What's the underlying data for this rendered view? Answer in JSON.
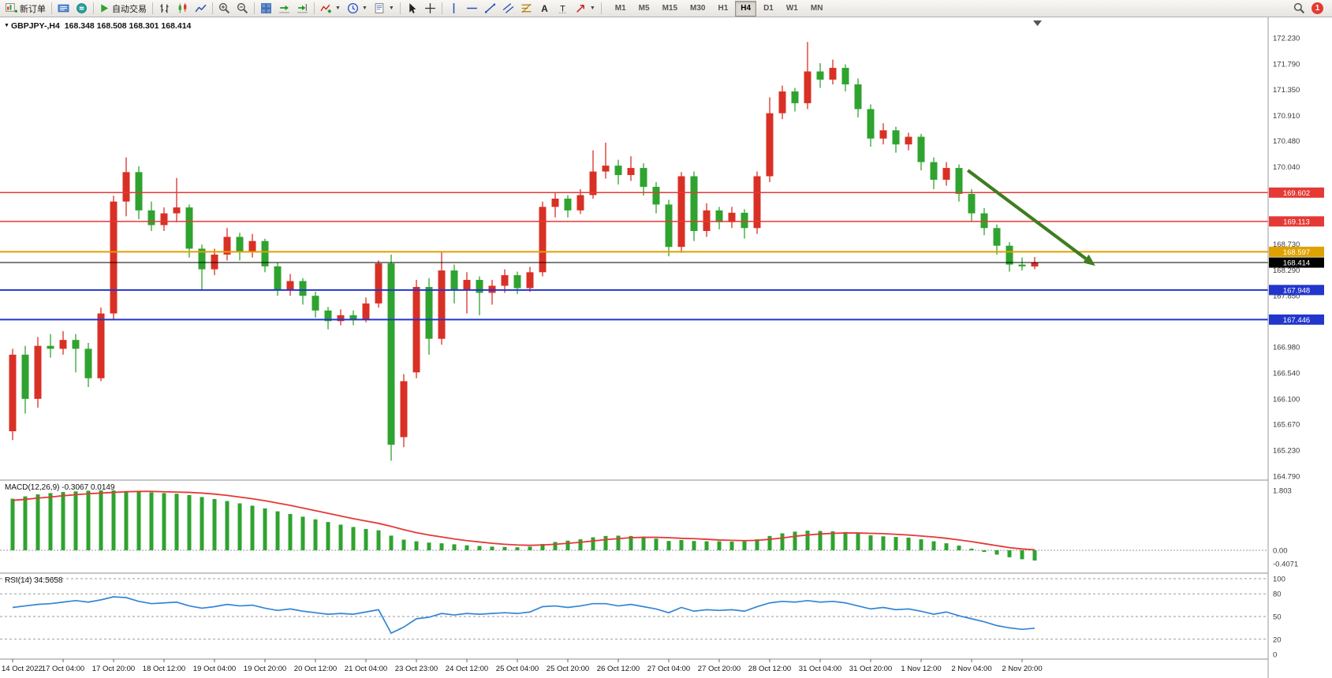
{
  "toolbar": {
    "new_order_label": "新订单",
    "autotrade_label": "自动交易",
    "timeframes": [
      "M1",
      "M5",
      "M15",
      "M30",
      "H1",
      "H4",
      "D1",
      "W1",
      "MN"
    ],
    "active_timeframe": "H4",
    "notification_count": "1"
  },
  "chart_data": {
    "type": "candlestick",
    "symbol_label": "GBPJPY-,H4",
    "ohlc_label": "168.348 168.508 168.301 168.414",
    "colors": {
      "up": "#d93025",
      "down": "#2fa32f",
      "macd_hist": "#2fa32f",
      "macd_signal": "#e53935",
      "rsi_line": "#3584d6"
    },
    "candles": [
      [
        165.55,
        166.95,
        165.4,
        166.85
      ],
      [
        166.85,
        167.0,
        165.85,
        166.1
      ],
      [
        166.1,
        167.15,
        165.95,
        167.0
      ],
      [
        167.0,
        167.2,
        166.8,
        166.95
      ],
      [
        166.95,
        167.25,
        166.85,
        167.1
      ],
      [
        167.1,
        167.2,
        166.55,
        166.95
      ],
      [
        166.95,
        167.05,
        166.3,
        166.45
      ],
      [
        166.45,
        167.65,
        166.4,
        167.55
      ],
      [
        167.55,
        169.55,
        167.45,
        169.45
      ],
      [
        169.45,
        170.2,
        169.2,
        169.95
      ],
      [
        169.95,
        170.05,
        169.15,
        169.3
      ],
      [
        169.3,
        169.45,
        168.95,
        169.05
      ],
      [
        169.05,
        169.35,
        168.95,
        169.25
      ],
      [
        169.25,
        169.85,
        169.1,
        169.35
      ],
      [
        169.35,
        169.4,
        168.5,
        168.65
      ],
      [
        168.65,
        168.72,
        167.95,
        168.3
      ],
      [
        168.3,
        168.65,
        168.2,
        168.55
      ],
      [
        168.55,
        169.0,
        168.45,
        168.85
      ],
      [
        168.85,
        168.92,
        168.45,
        168.6
      ],
      [
        168.6,
        168.9,
        168.5,
        168.78
      ],
      [
        168.78,
        168.82,
        168.25,
        168.35
      ],
      [
        168.35,
        168.42,
        167.85,
        167.95
      ],
      [
        167.95,
        168.22,
        167.85,
        168.1
      ],
      [
        168.1,
        168.15,
        167.7,
        167.85
      ],
      [
        167.85,
        167.92,
        167.48,
        167.6
      ],
      [
        167.6,
        167.66,
        167.28,
        167.42
      ],
      [
        167.42,
        167.62,
        167.35,
        167.52
      ],
      [
        167.52,
        167.6,
        167.35,
        167.45
      ],
      [
        167.45,
        167.82,
        167.4,
        167.72
      ],
      [
        167.72,
        168.45,
        167.65,
        168.4
      ],
      [
        168.4,
        168.55,
        165.05,
        165.32
      ],
      [
        165.45,
        166.52,
        165.28,
        166.4
      ],
      [
        166.55,
        168.12,
        166.45,
        168.0
      ],
      [
        168.0,
        168.15,
        166.85,
        167.12
      ],
      [
        167.12,
        168.6,
        167.02,
        168.28
      ],
      [
        168.28,
        168.38,
        167.72,
        167.95
      ],
      [
        167.95,
        168.25,
        167.55,
        168.12
      ],
      [
        168.12,
        168.18,
        167.52,
        167.9
      ],
      [
        167.9,
        168.12,
        167.7,
        168.02
      ],
      [
        168.02,
        168.3,
        167.9,
        168.2
      ],
      [
        168.2,
        168.26,
        167.88,
        167.98
      ],
      [
        167.98,
        168.34,
        167.92,
        168.25
      ],
      [
        168.25,
        169.45,
        168.18,
        169.36
      ],
      [
        169.36,
        169.6,
        169.18,
        169.5
      ],
      [
        169.5,
        169.56,
        169.18,
        169.3
      ],
      [
        169.3,
        169.66,
        169.24,
        169.56
      ],
      [
        169.56,
        170.32,
        169.5,
        169.96
      ],
      [
        169.96,
        170.45,
        169.84,
        170.06
      ],
      [
        170.06,
        170.16,
        169.74,
        169.9
      ],
      [
        169.9,
        170.22,
        169.8,
        170.02
      ],
      [
        170.02,
        170.1,
        169.55,
        169.7
      ],
      [
        169.7,
        169.78,
        169.25,
        169.4
      ],
      [
        169.4,
        169.48,
        168.52,
        168.68
      ],
      [
        168.68,
        169.95,
        168.58,
        169.88
      ],
      [
        169.88,
        169.96,
        168.78,
        168.95
      ],
      [
        168.95,
        169.42,
        168.85,
        169.3
      ],
      [
        169.3,
        169.36,
        168.98,
        169.1
      ],
      [
        169.1,
        169.36,
        169.0,
        169.26
      ],
      [
        169.26,
        169.32,
        168.82,
        169.0
      ],
      [
        169.0,
        169.96,
        168.9,
        169.88
      ],
      [
        169.88,
        171.22,
        169.78,
        170.95
      ],
      [
        170.95,
        171.42,
        170.85,
        171.32
      ],
      [
        171.32,
        171.38,
        170.98,
        171.12
      ],
      [
        171.12,
        172.16,
        171.02,
        171.66
      ],
      [
        171.66,
        171.8,
        171.38,
        171.52
      ],
      [
        171.52,
        171.86,
        171.44,
        171.72
      ],
      [
        171.72,
        171.78,
        171.32,
        171.44
      ],
      [
        171.44,
        171.54,
        170.88,
        171.02
      ],
      [
        171.02,
        171.1,
        170.38,
        170.52
      ],
      [
        170.52,
        170.78,
        170.42,
        170.66
      ],
      [
        170.66,
        170.72,
        170.28,
        170.42
      ],
      [
        170.42,
        170.62,
        170.32,
        170.55
      ],
      [
        170.55,
        170.6,
        169.98,
        170.12
      ],
      [
        170.12,
        170.2,
        169.66,
        169.82
      ],
      [
        169.82,
        170.12,
        169.72,
        170.02
      ],
      [
        170.02,
        170.08,
        169.45,
        169.58
      ],
      [
        169.58,
        169.66,
        169.12,
        169.25
      ],
      [
        169.25,
        169.34,
        168.88,
        169.0
      ],
      [
        169.0,
        169.06,
        168.55,
        168.7
      ],
      [
        168.7,
        168.76,
        168.26,
        168.38
      ],
      [
        168.38,
        168.5,
        168.28,
        168.35
      ],
      [
        168.348,
        168.508,
        168.301,
        168.414
      ]
    ],
    "hlines": [
      {
        "price": 169.602,
        "color": "#e53935",
        "width": 1.5
      },
      {
        "price": 169.113,
        "color": "#e53935",
        "width": 1.5
      },
      {
        "price": 168.597,
        "color": "#dfa100",
        "width": 2
      },
      {
        "price": 168.414,
        "color": "#000000",
        "width": 1
      },
      {
        "price": 167.948,
        "color": "#2236cc",
        "width": 2
      },
      {
        "price": 167.446,
        "color": "#2236cc",
        "width": 2
      }
    ],
    "price_ticks": [
      172.23,
      171.79,
      171.35,
      170.91,
      170.48,
      170.04,
      168.73,
      168.29,
      167.85,
      167.41,
      166.98,
      166.54,
      166.1,
      165.67,
      165.23,
      164.79
    ],
    "price_badges": [
      {
        "label": "169.602",
        "price": 169.602,
        "bg": "#e53935"
      },
      {
        "label": "169.113",
        "price": 169.113,
        "bg": "#e53935"
      },
      {
        "label": "168.597",
        "price": 168.597,
        "bg": "#dfa100"
      },
      {
        "label": "168.414",
        "price": 168.414,
        "bg": "#000000"
      },
      {
        "label": "167.948",
        "price": 167.948,
        "bg": "#2236cc"
      },
      {
        "label": "167.446",
        "price": 167.446,
        "bg": "#2236cc"
      }
    ],
    "arrow": {
      "from_candle": 75.7,
      "from_price": 169.98,
      "to_candle": 85.8,
      "to_price": 168.36,
      "color": "#3f7d20"
    },
    "macd": {
      "label": "MACD(12,26,9) -0.3067 0.0149",
      "values": [
        1.55,
        1.62,
        1.68,
        1.72,
        1.75,
        1.77,
        1.79,
        1.8,
        1.8,
        1.78,
        1.76,
        1.74,
        1.72,
        1.7,
        1.66,
        1.6,
        1.54,
        1.48,
        1.41,
        1.34,
        1.26,
        1.17,
        1.09,
        1.01,
        0.93,
        0.85,
        0.77,
        0.7,
        0.64,
        0.6,
        0.44,
        0.32,
        0.27,
        0.23,
        0.21,
        0.18,
        0.15,
        0.13,
        0.11,
        0.1,
        0.09,
        0.11,
        0.19,
        0.25,
        0.29,
        0.33,
        0.39,
        0.43,
        0.44,
        0.43,
        0.41,
        0.35,
        0.28,
        0.31,
        0.28,
        0.27,
        0.27,
        0.26,
        0.27,
        0.33,
        0.43,
        0.51,
        0.56,
        0.59,
        0.58,
        0.57,
        0.55,
        0.5,
        0.45,
        0.42,
        0.4,
        0.38,
        0.33,
        0.27,
        0.21,
        0.14,
        0.05,
        -0.05,
        -0.13,
        -0.21,
        -0.27,
        -0.3067
      ],
      "signal": [
        1.5,
        1.53,
        1.57,
        1.6,
        1.64,
        1.67,
        1.7,
        1.72,
        1.74,
        1.76,
        1.77,
        1.77,
        1.76,
        1.75,
        1.74,
        1.72,
        1.69,
        1.65,
        1.6,
        1.55,
        1.49,
        1.42,
        1.35,
        1.27,
        1.19,
        1.11,
        1.03,
        0.95,
        0.88,
        0.81,
        0.72,
        0.62,
        0.53,
        0.46,
        0.4,
        0.34,
        0.29,
        0.25,
        0.21,
        0.18,
        0.16,
        0.15,
        0.16,
        0.18,
        0.21,
        0.24,
        0.28,
        0.32,
        0.35,
        0.38,
        0.39,
        0.39,
        0.38,
        0.36,
        0.35,
        0.33,
        0.31,
        0.3,
        0.29,
        0.3,
        0.33,
        0.37,
        0.42,
        0.46,
        0.49,
        0.51,
        0.52,
        0.52,
        0.51,
        0.5,
        0.48,
        0.46,
        0.43,
        0.4,
        0.36,
        0.31,
        0.26,
        0.2,
        0.14,
        0.08,
        0.04,
        0.0149
      ],
      "axis": [
        {
          "label": "1.803",
          "value": 1.803
        },
        {
          "label": "0.00",
          "value": 0
        },
        {
          "label": "-0.4071",
          "value": -0.4071
        }
      ]
    },
    "rsi": {
      "label": "RSI(14) 34.5658",
      "values": [
        62,
        64,
        66,
        67,
        69,
        71,
        69,
        72,
        76,
        75,
        70,
        67,
        68,
        69,
        64,
        61,
        63,
        66,
        64,
        65,
        61,
        58,
        60,
        57,
        55,
        53,
        54,
        53,
        56,
        59,
        28,
        36,
        47,
        49,
        54,
        52,
        54,
        53,
        54,
        55,
        54,
        56,
        63,
        64,
        62,
        64,
        67,
        67,
        64,
        66,
        63,
        60,
        55,
        62,
        57,
        59,
        58,
        59,
        57,
        63,
        68,
        70,
        69,
        71,
        69,
        70,
        68,
        64,
        60,
        62,
        59,
        60,
        57,
        53,
        56,
        51,
        47,
        43,
        38,
        35,
        33,
        34.5658
      ],
      "levels": [
        100,
        80,
        50,
        20
      ],
      "axis_ticks": [
        100,
        80,
        50,
        20,
        0
      ]
    },
    "time_labels": [
      "14 Oct 2022",
      "17 Oct 04:00",
      "17 Oct 20:00",
      "18 Oct 12:00",
      "19 Oct 04:00",
      "19 Oct 20:00",
      "20 Oct 12:00",
      "21 Oct 04:00",
      "23 Oct 23:00",
      "24 Oct 12:00",
      "25 Oct 04:00",
      "25 Oct 20:00",
      "26 Oct 12:00",
      "27 Oct 04:00",
      "27 Oct 20:00",
      "28 Oct 12:00",
      "31 Oct 04:00",
      "31 Oct 20:00",
      "1 Nov 12:00",
      "2 Nov 04:00",
      "2 Nov 20:00"
    ]
  }
}
